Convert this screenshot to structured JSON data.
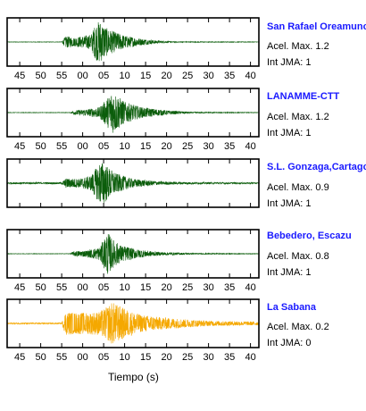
{
  "chart_data": {
    "type": "line",
    "xlabel": "Tiempo (s)",
    "ylabel": "",
    "x_tick_labels": [
      "45",
      "50",
      "55",
      "00",
      "05",
      "10",
      "15",
      "20",
      "25",
      "30",
      "35",
      "40"
    ],
    "x_ticks_labeled_for_panels": [
      1,
      2,
      4,
      5
    ],
    "grid": false,
    "series": [
      {
        "name": "San Rafael Oreamuno",
        "acel_text": "Acel. Max. 1.2",
        "jma_text": "Int JMA: 1",
        "color": "#0b5d0b",
        "acel_max": 1.2,
        "jma": 1,
        "onset_x": 55,
        "peak_x": 64,
        "envelope": [
          [
            42,
            0.01
          ],
          [
            55,
            0.01
          ],
          [
            56,
            0.28
          ],
          [
            58,
            0.2
          ],
          [
            62,
            0.35
          ],
          [
            63,
            0.8
          ],
          [
            64,
            1.0
          ],
          [
            66,
            0.6
          ],
          [
            70,
            0.3
          ],
          [
            74,
            0.15
          ],
          [
            78,
            0.06
          ],
          [
            82,
            0.02
          ],
          [
            102,
            0.01
          ]
        ]
      },
      {
        "name": "LANAMME-CTT",
        "acel_text": "Acel. Max. 1.2",
        "jma_text": "Int JMA: 1",
        "color": "#0b5d0b",
        "acel_max": 1.2,
        "jma": 1,
        "onset_x": 57,
        "peak_x": 67,
        "envelope": [
          [
            42,
            0.01
          ],
          [
            57,
            0.01
          ],
          [
            58,
            0.1
          ],
          [
            61,
            0.15
          ],
          [
            64,
            0.25
          ],
          [
            66,
            0.7
          ],
          [
            67,
            1.0
          ],
          [
            68,
            0.85
          ],
          [
            70,
            0.5
          ],
          [
            74,
            0.25
          ],
          [
            80,
            0.1
          ],
          [
            86,
            0.03
          ],
          [
            102,
            0.01
          ]
        ]
      },
      {
        "name": "S.L. Gonzaga,Cartago",
        "acel_text": "Acel. Max. 0.9",
        "jma_text": "Int JMA: 1",
        "color": "#0b5d0b",
        "acel_max": 0.9,
        "jma": 1,
        "onset_x": 55,
        "peak_x": 64,
        "envelope": [
          [
            42,
            0.04
          ],
          [
            55,
            0.04
          ],
          [
            56,
            0.22
          ],
          [
            59,
            0.2
          ],
          [
            62,
            0.35
          ],
          [
            64,
            0.95
          ],
          [
            65,
            1.0
          ],
          [
            66,
            0.75
          ],
          [
            68,
            0.45
          ],
          [
            72,
            0.2
          ],
          [
            78,
            0.08
          ],
          [
            84,
            0.05
          ],
          [
            102,
            0.03
          ]
        ]
      },
      {
        "name": "Bebedero, Escazu",
        "acel_text": "Acel. Max. 0.8",
        "jma_text": "Int JMA: 1",
        "color": "#0b5d0b",
        "acel_max": 0.8,
        "jma": 1,
        "onset_x": 57,
        "peak_x": 66,
        "envelope": [
          [
            42,
            0.01
          ],
          [
            57,
            0.01
          ],
          [
            58,
            0.12
          ],
          [
            61,
            0.15
          ],
          [
            64,
            0.3
          ],
          [
            66,
            1.0
          ],
          [
            67,
            0.7
          ],
          [
            69,
            0.4
          ],
          [
            73,
            0.2
          ],
          [
            78,
            0.08
          ],
          [
            86,
            0.03
          ],
          [
            102,
            0.01
          ]
        ]
      },
      {
        "name": "La Sabana",
        "acel_text": "Acel. Max. 0.2",
        "jma_text": "Int JMA: 0",
        "color": "#f5a800",
        "acel_max": 0.2,
        "jma": 0,
        "onset_x": 55,
        "peak_x": 67,
        "envelope": [
          [
            42,
            0.03
          ],
          [
            55,
            0.03
          ],
          [
            56,
            0.55
          ],
          [
            58,
            0.5
          ],
          [
            61,
            0.5
          ],
          [
            64,
            0.55
          ],
          [
            66,
            0.8
          ],
          [
            67,
            1.0
          ],
          [
            69,
            0.8
          ],
          [
            71,
            0.6
          ],
          [
            74,
            0.4
          ],
          [
            78,
            0.3
          ],
          [
            84,
            0.2
          ],
          [
            90,
            0.12
          ],
          [
            102,
            0.08
          ]
        ]
      }
    ]
  }
}
